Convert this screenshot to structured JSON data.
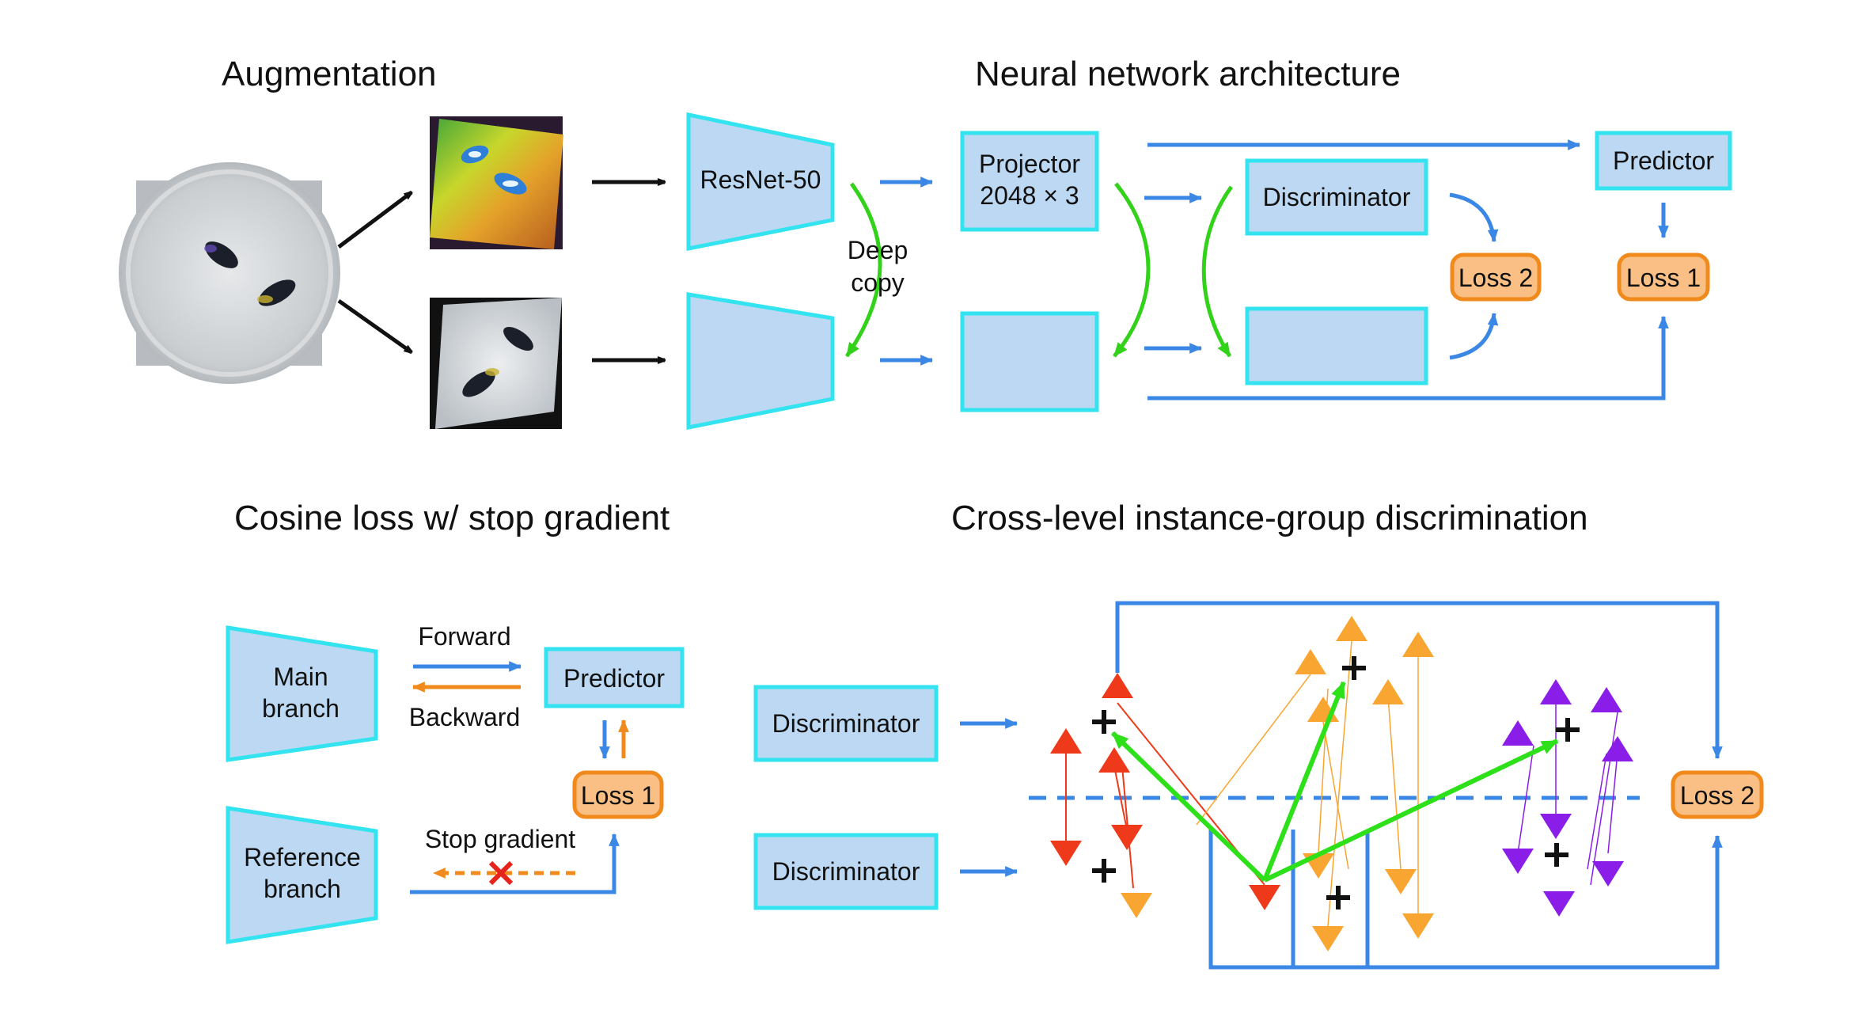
{
  "titles": {
    "augmentation": "Augmentation",
    "architecture": "Neural network architecture",
    "cosine": "Cosine loss w/ stop gradient",
    "crosslevel": "Cross-level instance-group discrimination"
  },
  "architecture": {
    "resnet": "ResNet-50",
    "deep_copy_1": "Deep",
    "deep_copy_2": "copy",
    "projector_1": "Projector",
    "projector_2": "2048 × 3",
    "discriminator": "Discriminator",
    "predictor": "Predictor",
    "loss2": "Loss 2",
    "loss1": "Loss 1"
  },
  "cosine": {
    "main_1": "Main",
    "main_2": "branch",
    "reference_1": "Reference",
    "reference_2": "branch",
    "forward": "Forward",
    "backward": "Backward",
    "predictor": "Predictor",
    "loss1": "Loss 1",
    "stop_gradient": "Stop gradient"
  },
  "crosslevel": {
    "discriminator_top": "Discriminator",
    "discriminator_bottom": "Discriminator",
    "loss2": "Loss 2"
  },
  "colors": {
    "box_fill": "#bcd8f2",
    "box_stroke": "#34e3f0",
    "loss_fill": "#f9bf84",
    "loss_stroke": "#f08a1c",
    "arrow_blue": "#3a87e6",
    "arrow_green": "#33d21a",
    "arrow_orange": "#f08a1c",
    "red": "#ee3a1a",
    "orange": "#f9a531",
    "purple": "#8a1ee8",
    "green_vector": "#2de01a"
  }
}
